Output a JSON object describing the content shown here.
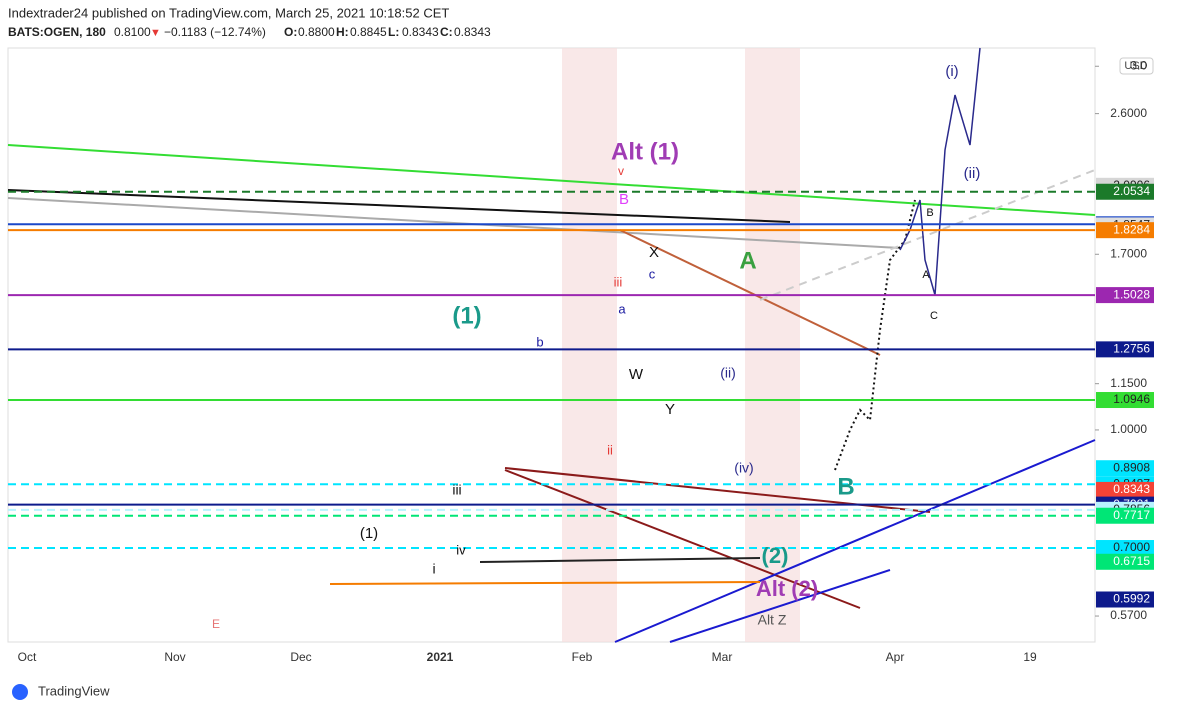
{
  "chart_data": {
    "type": "annotated-price-chart",
    "header": {
      "publisher": "Indextrader24 published on TradingView.com, March 25, 2021 10:18:52 CET",
      "symbol": "BATS:OGEN, 180",
      "last": "0.8100",
      "change": "−0.1183 (−12.74%)",
      "ohlc": [
        {
          "label": "O:",
          "value": "0.8800"
        },
        {
          "label": "H:",
          "value": "0.8845"
        },
        {
          "label": "L:",
          "value": "0.8343"
        },
        {
          "label": "C:",
          "value": "0.8343"
        }
      ]
    },
    "currency": "USD",
    "footer": "TradingView",
    "log_scale": true,
    "ylim": [
      0.527,
      3.17
    ],
    "yticks": [
      {
        "value": 3.0,
        "label": "3.0"
      },
      {
        "value": 2.6,
        "label": "2.6000"
      },
      {
        "value": 1.7,
        "label": "1.7000"
      },
      {
        "value": 1.15,
        "label": "1.1500"
      },
      {
        "value": 1.0,
        "label": "1.0000"
      },
      {
        "value": 0.57,
        "label": "0.5700"
      }
    ],
    "levels": [
      {
        "value": 2.0906,
        "label": "2.0906",
        "color": "#d6d6d6",
        "style": "none"
      },
      {
        "value": 2.0534,
        "label": "2.0534",
        "color": "#1b7a2a",
        "style": "dashed"
      },
      {
        "value": 1.8612,
        "label": "1.8612",
        "color": "#1a47c8",
        "style": "solid"
      },
      {
        "value": 1.8547,
        "label": "1.8547",
        "color": "#dedede",
        "style": "none"
      },
      {
        "value": 1.8284,
        "label": "1.8284",
        "color": "#f57c00",
        "style": "solid"
      },
      {
        "value": 1.5028,
        "label": "1.5028",
        "color": "#9c27b0",
        "style": "solid"
      },
      {
        "value": 1.2756,
        "label": "1.2756",
        "color": "#0d1a8c",
        "style": "solid"
      },
      {
        "value": 1.0946,
        "label": "1.0946",
        "color": "#33dd33",
        "style": "solid"
      },
      {
        "value": 0.8908,
        "label": "0.8908",
        "color": "#00e5ff",
        "style": "none"
      },
      {
        "value": 0.8487,
        "label": "0.8487",
        "color": "#00e5ff",
        "style": "dashed"
      },
      {
        "value": 0.8343,
        "label": "0.8343",
        "color": "#f44336",
        "style": "none"
      },
      {
        "value": 0.7981,
        "label": "0.7981",
        "color": "#0d1a8c",
        "style": "solid"
      },
      {
        "value": 0.7856,
        "label": "0.7856",
        "color": "#b8f2ff",
        "style": "dashed"
      },
      {
        "value": 0.7717,
        "label": "0.7717",
        "color": "#00e676",
        "style": "dashed"
      },
      {
        "value": 0.7,
        "label": "0.7000",
        "color": "#00e5ff",
        "style": "dashed"
      },
      {
        "value": 0.6715,
        "label": "0.6715",
        "color": "#00e676",
        "style": "none"
      },
      {
        "value": 0.5992,
        "label": "0.5992",
        "color": "#0d1a8c",
        "style": "none"
      }
    ],
    "xticks": [
      "Oct",
      "Nov",
      "Dec",
      "2021",
      "Feb",
      "Mar",
      "Apr",
      "19"
    ],
    "annotations": [
      {
        "text": "Alt (1)",
        "color": "#a03cb4"
      },
      {
        "text": "(1)",
        "color": "#1a9a8a"
      },
      {
        "text": "A",
        "color": "#3aa040"
      },
      {
        "text": "B",
        "color": "#1a9a8a"
      },
      {
        "text": "Alt (2)",
        "color": "#a03cb4"
      },
      {
        "text": "(2)",
        "color": "#1a9a8a"
      },
      {
        "text": "(i)",
        "color": "#2a2a8c"
      },
      {
        "text": "(ii)",
        "color": "#2a2a8c"
      },
      {
        "text": "X",
        "color": "#111111"
      },
      {
        "text": "W",
        "color": "#111111"
      },
      {
        "text": "Y",
        "color": "#111111"
      },
      {
        "text": "(1)",
        "color": "#111111"
      },
      {
        "text": "B",
        "color": "#e040fb"
      },
      {
        "text": "v",
        "color": "#e53935"
      },
      {
        "text": "iii",
        "color": "#e53935"
      },
      {
        "text": "ii",
        "color": "#e53935"
      },
      {
        "text": "a",
        "color": "#1a1aa0"
      },
      {
        "text": "b",
        "color": "#1a1aa0"
      },
      {
        "text": "c",
        "color": "#1a1aa0"
      },
      {
        "text": "(ii)",
        "color": "#2a2a8c"
      },
      {
        "text": "(iv)",
        "color": "#2a2a8c"
      },
      {
        "text": "A",
        "color": "#111111"
      },
      {
        "text": "B",
        "color": "#111111"
      },
      {
        "text": "C",
        "color": "#111111"
      },
      {
        "text": "iii",
        "color": "#111111"
      },
      {
        "text": "iv",
        "color": "#111111"
      },
      {
        "text": "i",
        "color": "#111111"
      },
      {
        "text": "E",
        "color": "#e57373"
      },
      {
        "text": "Alt Z",
        "color": "#555555"
      }
    ]
  }
}
